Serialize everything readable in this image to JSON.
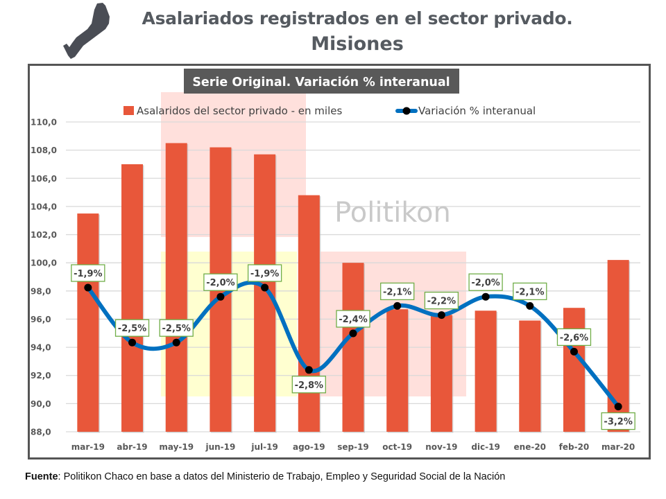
{
  "header": {
    "title_line1": "Asalariados registrados en el sector privado.",
    "title_line2": "Misiones",
    "logo_icon": "misiones-province-map-icon"
  },
  "footer": {
    "source_label": "Fuente",
    "source_text": ": Politikon Chaco en base a datos del Ministerio de Trabajo, Empleo y Seguridad Social de la Nación"
  },
  "watermark": "Politikon",
  "colors": {
    "bar": "#e8573a",
    "line": "#0070c0",
    "marker": "#000000",
    "label_border": "#70ad47",
    "title_box": "#595959",
    "highlight_pink": "#ffe0dc",
    "highlight_yellow": "#ffffd0"
  },
  "chart_data": {
    "type": "bar+line",
    "title": "Serie Original. Variación % interanual",
    "xlabel": "",
    "ylabel": "",
    "categories": [
      "mar-19",
      "abr-19",
      "may-19",
      "jun-19",
      "jul-19",
      "ago-19",
      "sep-19",
      "oct-19",
      "nov-19",
      "dic-19",
      "ene-20",
      "feb-20",
      "mar-20"
    ],
    "ylim": [
      88,
      110
    ],
    "yticks": [
      "88,0",
      "90,0",
      "92,0",
      "94,0",
      "96,0",
      "98,0",
      "100,0",
      "102,0",
      "104,0",
      "106,0",
      "108,0",
      "110,0"
    ],
    "ytick_values": [
      88,
      90,
      92,
      94,
      96,
      98,
      100,
      102,
      104,
      106,
      108,
      110
    ],
    "grid": true,
    "legend_position": "top",
    "series": [
      {
        "name": "Asalaridos del sector privado - en miles",
        "type": "bar",
        "axis": "primary",
        "values": [
          103.5,
          107.0,
          108.5,
          108.2,
          107.7,
          104.8,
          100.0,
          96.7,
          96.3,
          96.6,
          95.9,
          96.8,
          100.2
        ]
      },
      {
        "name": "Variación % interanual",
        "type": "line",
        "axis": "secondary (hidden)",
        "values": [
          -1.9,
          -2.5,
          -2.5,
          -2.0,
          -1.9,
          -2.8,
          -2.4,
          -2.1,
          -2.2,
          -2.0,
          -2.1,
          -2.6,
          -3.2
        ],
        "labels": [
          "-1,9%",
          "-2,5%",
          "-2,5%",
          "-2,0%",
          "-1,9%",
          "-2,8%",
          "-2,4%",
          "-2,1%",
          "-2,2%",
          "-2,0%",
          "-2,1%",
          "-2,6%",
          "-3,2%"
        ],
        "label_positions": [
          "above",
          "above",
          "above",
          "above",
          "above",
          "below",
          "above",
          "above",
          "above",
          "above",
          "above",
          "above",
          "below"
        ]
      }
    ]
  }
}
